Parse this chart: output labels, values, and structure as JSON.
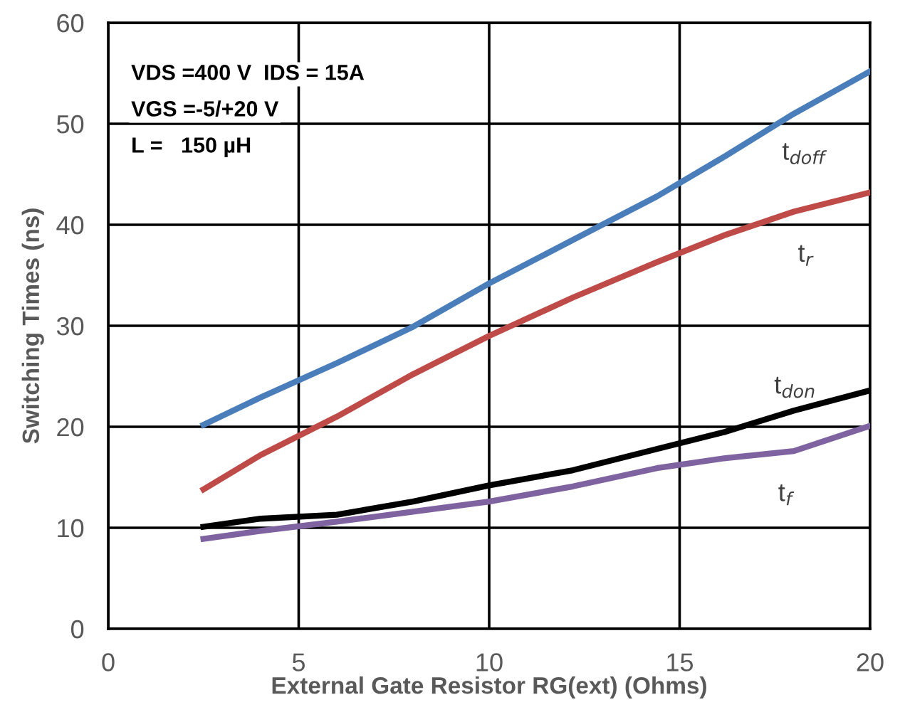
{
  "chart_data": {
    "type": "line",
    "xlabel": "External Gate Resistor RG(ext) (Ohms)",
    "ylabel": "Switching Times (ns)",
    "xlim": [
      0,
      20
    ],
    "xticks": [
      0,
      5,
      10,
      15,
      20
    ],
    "ylim": [
      0,
      60
    ],
    "yticks": [
      0,
      10,
      20,
      30,
      40,
      50,
      60
    ],
    "grid": true,
    "legend": false,
    "marker": "none",
    "line_style": "solid",
    "annotations": [
      "VDS =400 V  IDS = 15A",
      "VGS =-5/+20 V",
      "L =   150 µH"
    ],
    "x": [
      2.5,
      4,
      6,
      8,
      10,
      12.2,
      14.4,
      16.2,
      18,
      20
    ],
    "series": [
      {
        "name": "t$_{doff}$",
        "color": "#4a7ebb",
        "values": [
          20.2,
          22.9,
          26.3,
          29.9,
          34.2,
          38.5,
          42.8,
          46.8,
          51,
          55.2
        ]
      },
      {
        "name": "t$_{r}$",
        "color": "#be4b48",
        "values": [
          13.8,
          17.2,
          21,
          25.2,
          29,
          32.8,
          36.3,
          39,
          41.3,
          43.2
        ]
      },
      {
        "name": "t$_{don}$",
        "color": "#000000",
        "values": [
          10.1,
          10.9,
          11.3,
          12.6,
          14.2,
          15.7,
          17.8,
          19.5,
          21.6,
          23.6
        ]
      },
      {
        "name": "t$_{f}$",
        "color": "#7f63a0",
        "values": [
          8.9,
          9.7,
          10.6,
          11.6,
          12.6,
          14.1,
          15.9,
          16.9,
          17.6,
          20.1
        ]
      }
    ]
  }
}
